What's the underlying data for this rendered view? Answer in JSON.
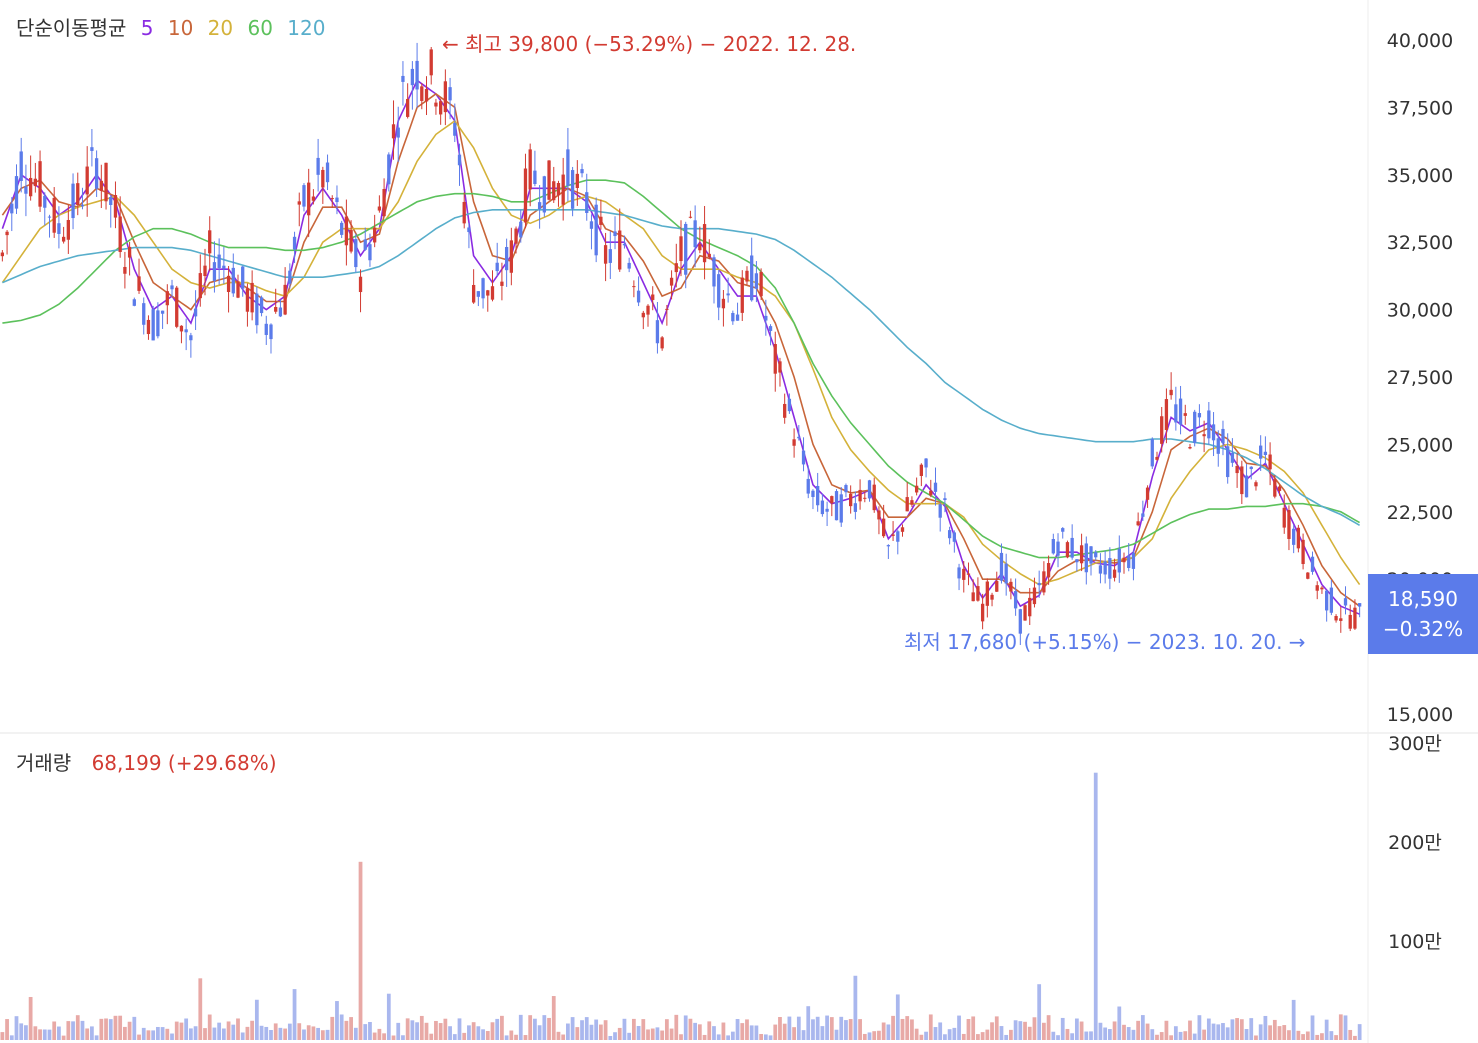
{
  "legend": {
    "title": "단순이동평균",
    "periods": [
      {
        "label": "5",
        "color": "#8a2be2"
      },
      {
        "label": "10",
        "color": "#c8663a"
      },
      {
        "label": "20",
        "color": "#d4b23a"
      },
      {
        "label": "60",
        "color": "#5cc15c"
      },
      {
        "label": "120",
        "color": "#58aecb"
      }
    ]
  },
  "annotations": {
    "high": "← 최고 39,800 (−53.29%) − 2022. 12. 28.",
    "low": "최저 17,680 (+5.15%) − 2023. 10. 20. →"
  },
  "current_price": {
    "value": "18,590",
    "change": "−0.32%"
  },
  "volume_legend": {
    "label": "거래량",
    "value": "68,199 (+29.68%)"
  },
  "colors": {
    "up": "#d23b32",
    "down": "#5b7bea",
    "vol_up": "#e8a9a6",
    "vol_down": "#a9b7ee"
  },
  "chart_data": [
    {
      "type": "candlestick",
      "title": "단순이동평균",
      "y_ticks": [
        "40,000",
        "37,500",
        "35,000",
        "32,500",
        "30,000",
        "27,500",
        "25,000",
        "22,500",
        "20,000",
        "15,000"
      ],
      "y_tick_values": [
        40000,
        37500,
        35000,
        32500,
        30000,
        27500,
        25000,
        22500,
        20000,
        15000
      ],
      "ylim": [
        14500,
        41000
      ],
      "grid": false,
      "close_series": [
        32000,
        35500,
        34500,
        33000,
        34000,
        35500,
        33500,
        31000,
        29500,
        30500,
        29000,
        32000,
        31500,
        30500,
        29500,
        30500,
        34000,
        35000,
        33000,
        31500,
        33500,
        37500,
        39000,
        38500,
        37000,
        31000,
        30500,
        32000,
        35000,
        34500,
        35000,
        34000,
        32000,
        32500,
        30500,
        29000,
        32000,
        33000,
        31000,
        30000,
        31500,
        28000,
        25500,
        23000,
        22500,
        23000,
        23500,
        21000,
        22500,
        24000,
        22500,
        20000,
        19000,
        20500,
        18500,
        19500,
        21500,
        21000,
        20500,
        20500,
        21000,
        24500,
        26500,
        25500,
        26000,
        24500,
        23500,
        24500,
        22500,
        21000,
        19500,
        18800,
        18590
      ],
      "ma": [
        {
          "name": "5",
          "values": [
            33000,
            35000,
            34500,
            33500,
            34000,
            35000,
            34000,
            31500,
            30000,
            30500,
            29500,
            31500,
            31500,
            30500,
            30000,
            30500,
            33500,
            34500,
            33500,
            32000,
            33000,
            37000,
            38500,
            38000,
            37000,
            32000,
            31000,
            32000,
            34500,
            34500,
            34500,
            34000,
            32500,
            32500,
            31000,
            29500,
            31500,
            32500,
            31500,
            30500,
            30500,
            28500,
            26000,
            23500,
            22800,
            23000,
            23300,
            21500,
            22300,
            23500,
            22700,
            20500,
            19300,
            20200,
            19000,
            19400,
            21000,
            21000,
            20600,
            20500,
            21000,
            23800,
            26000,
            25500,
            25800,
            24800,
            23700,
            24300,
            22800,
            21300,
            19800,
            19000,
            18700
          ]
        },
        {
          "name": "10",
          "values": [
            33500,
            34500,
            34800,
            34000,
            33800,
            34500,
            34200,
            32500,
            31000,
            30500,
            30000,
            31000,
            31200,
            30800,
            30300,
            30300,
            32500,
            33800,
            33800,
            32500,
            32800,
            35500,
            37500,
            38000,
            37500,
            34000,
            32000,
            31800,
            33500,
            34000,
            34500,
            34200,
            33000,
            32700,
            31800,
            30500,
            30800,
            32000,
            31800,
            31000,
            30800,
            29500,
            27500,
            25000,
            23500,
            23200,
            23300,
            22300,
            22300,
            23000,
            22800,
            21500,
            20000,
            20000,
            19500,
            19500,
            20300,
            20700,
            20700,
            20600,
            20800,
            22500,
            24800,
            25300,
            25600,
            25200,
            24300,
            24200,
            23300,
            22000,
            20500,
            19500,
            19000
          ]
        },
        {
          "name": "20",
          "values": [
            31000,
            32000,
            33000,
            33500,
            33800,
            34000,
            34200,
            33500,
            32500,
            31500,
            31000,
            30800,
            31000,
            31000,
            30700,
            30500,
            31200,
            32500,
            33000,
            33000,
            33000,
            34000,
            35500,
            36500,
            37000,
            36000,
            34500,
            33500,
            33200,
            33500,
            34000,
            34200,
            34000,
            33500,
            33000,
            32000,
            31500,
            31500,
            31500,
            31200,
            31000,
            30500,
            29500,
            27800,
            26000,
            24800,
            24000,
            23300,
            22800,
            22800,
            22800,
            22300,
            21300,
            20700,
            20200,
            19800,
            20000,
            20300,
            20600,
            20700,
            20800,
            21500,
            23000,
            24000,
            24800,
            25000,
            24800,
            24500,
            24000,
            23200,
            22000,
            20800,
            19800
          ]
        },
        {
          "name": "60",
          "values": [
            29500,
            29600,
            29800,
            30200,
            30800,
            31500,
            32200,
            32700,
            33000,
            33000,
            32800,
            32500,
            32300,
            32300,
            32300,
            32200,
            32200,
            32300,
            32500,
            32800,
            33200,
            33600,
            34000,
            34200,
            34300,
            34300,
            34200,
            34000,
            34000,
            34300,
            34600,
            34800,
            34800,
            34700,
            34200,
            33600,
            33000,
            32600,
            32300,
            32000,
            31600,
            30800,
            29500,
            28000,
            26800,
            25800,
            25000,
            24200,
            23600,
            23200,
            22800,
            22200,
            21600,
            21200,
            21000,
            20800,
            20800,
            20900,
            21000,
            21100,
            21300,
            21700,
            22100,
            22400,
            22600,
            22600,
            22700,
            22700,
            22800,
            22800,
            22700,
            22500,
            22100
          ]
        },
        {
          "name": "120",
          "values": [
            31000,
            31300,
            31600,
            31800,
            32000,
            32100,
            32200,
            32300,
            32300,
            32300,
            32200,
            32000,
            31800,
            31600,
            31400,
            31200,
            31200,
            31200,
            31300,
            31400,
            31600,
            32000,
            32500,
            33000,
            33400,
            33600,
            33700,
            33700,
            33700,
            33700,
            33700,
            33700,
            33600,
            33500,
            33300,
            33100,
            33000,
            33000,
            33000,
            32900,
            32800,
            32600,
            32200,
            31700,
            31200,
            30600,
            30000,
            29300,
            28600,
            28000,
            27300,
            26800,
            26300,
            25900,
            25600,
            25400,
            25300,
            25200,
            25100,
            25100,
            25100,
            25200,
            25200,
            25100,
            25000,
            24800,
            24500,
            24100,
            23600,
            23100,
            22700,
            22400,
            22000
          ]
        }
      ]
    },
    {
      "type": "bar",
      "title": "거래량",
      "y_ticks": [
        "300만",
        "200만",
        "100만"
      ],
      "y_tick_values": [
        3000000,
        2000000,
        1000000
      ],
      "ylim": [
        0,
        3000000
      ],
      "peak_values": [
        {
          "index": 58,
          "value": 2700000
        },
        {
          "index": 19,
          "value": 1800000
        }
      ]
    }
  ]
}
